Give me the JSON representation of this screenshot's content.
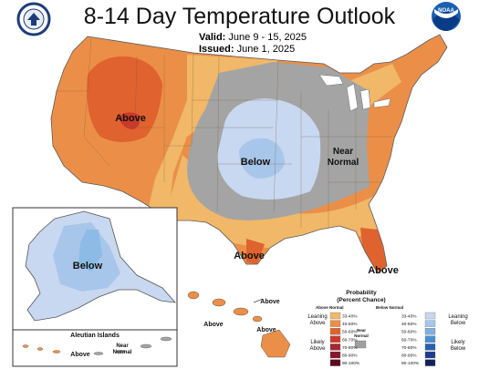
{
  "header": {
    "title": "8-14 Day Temperature Outlook",
    "valid_label": "Valid:",
    "valid_value": "June 9 - 15, 2025",
    "issued_label": "Issued:",
    "issued_value": "June 1, 2025"
  },
  "map_labels": {
    "above_west": "Above",
    "below_central": "Below",
    "near_normal_line1": "Near",
    "near_normal_line2": "Normal",
    "above_texas": "Above",
    "above_florida": "Above",
    "below_alaska": "Below",
    "aleutian_title": "Aleutian Islands",
    "aleutian_above": "Above",
    "aleutian_near1": "Near",
    "aleutian_near2": "Normal",
    "hawaii_above_1": "Above",
    "hawaii_above_2": "Above",
    "hawaii_above_3": "Above"
  },
  "legend": {
    "title_line1": "Probability",
    "title_line2": "(Percent Chance)",
    "above_header": "Above Normal",
    "below_header": "Below Normal",
    "near_header_line1": "Near",
    "near_header_line2": "Normal",
    "leaning_above_1": "Leaning",
    "leaning_above_2": "Above",
    "likely_above_1": "Likely",
    "likely_above_2": "Above",
    "leaning_below_1": "Leaning",
    "leaning_below_2": "Below",
    "likely_below_1": "Likely",
    "likely_below_2": "Below",
    "above_bins": [
      "33-40%",
      "40-50%",
      "50-60%",
      "60-70%",
      "70-80%",
      "80-90%",
      "90-100%"
    ],
    "below_bins": [
      "33-40%",
      "40-50%",
      "50-60%",
      "60-70%",
      "70-80%",
      "80-90%",
      "90-100%"
    ],
    "above_colors": [
      "#f0b868",
      "#eb8f48",
      "#e0622e",
      "#c83b2a",
      "#a8282e",
      "#86162a",
      "#5c0a1c"
    ],
    "below_colors": [
      "#c8d8f0",
      "#a8c6ea",
      "#7fb0e0",
      "#4a8ed0",
      "#2a60b0",
      "#1e3c8c",
      "#14205c"
    ],
    "near_color": "#a0a0a0"
  },
  "colors": {
    "above_33_40": "#f0b868",
    "above_40_50": "#eb8f48",
    "above_50_60": "#e0622e",
    "above_60_70": "#c83b2a",
    "near_normal": "#a4a4a4",
    "below_33_40": "#c8d8f0",
    "below_40_50": "#a8c6ea",
    "below_50_60": "#7fb0e0"
  },
  "logos": {
    "left": "doc-seal-icon",
    "right": "noaa-logo-icon"
  }
}
